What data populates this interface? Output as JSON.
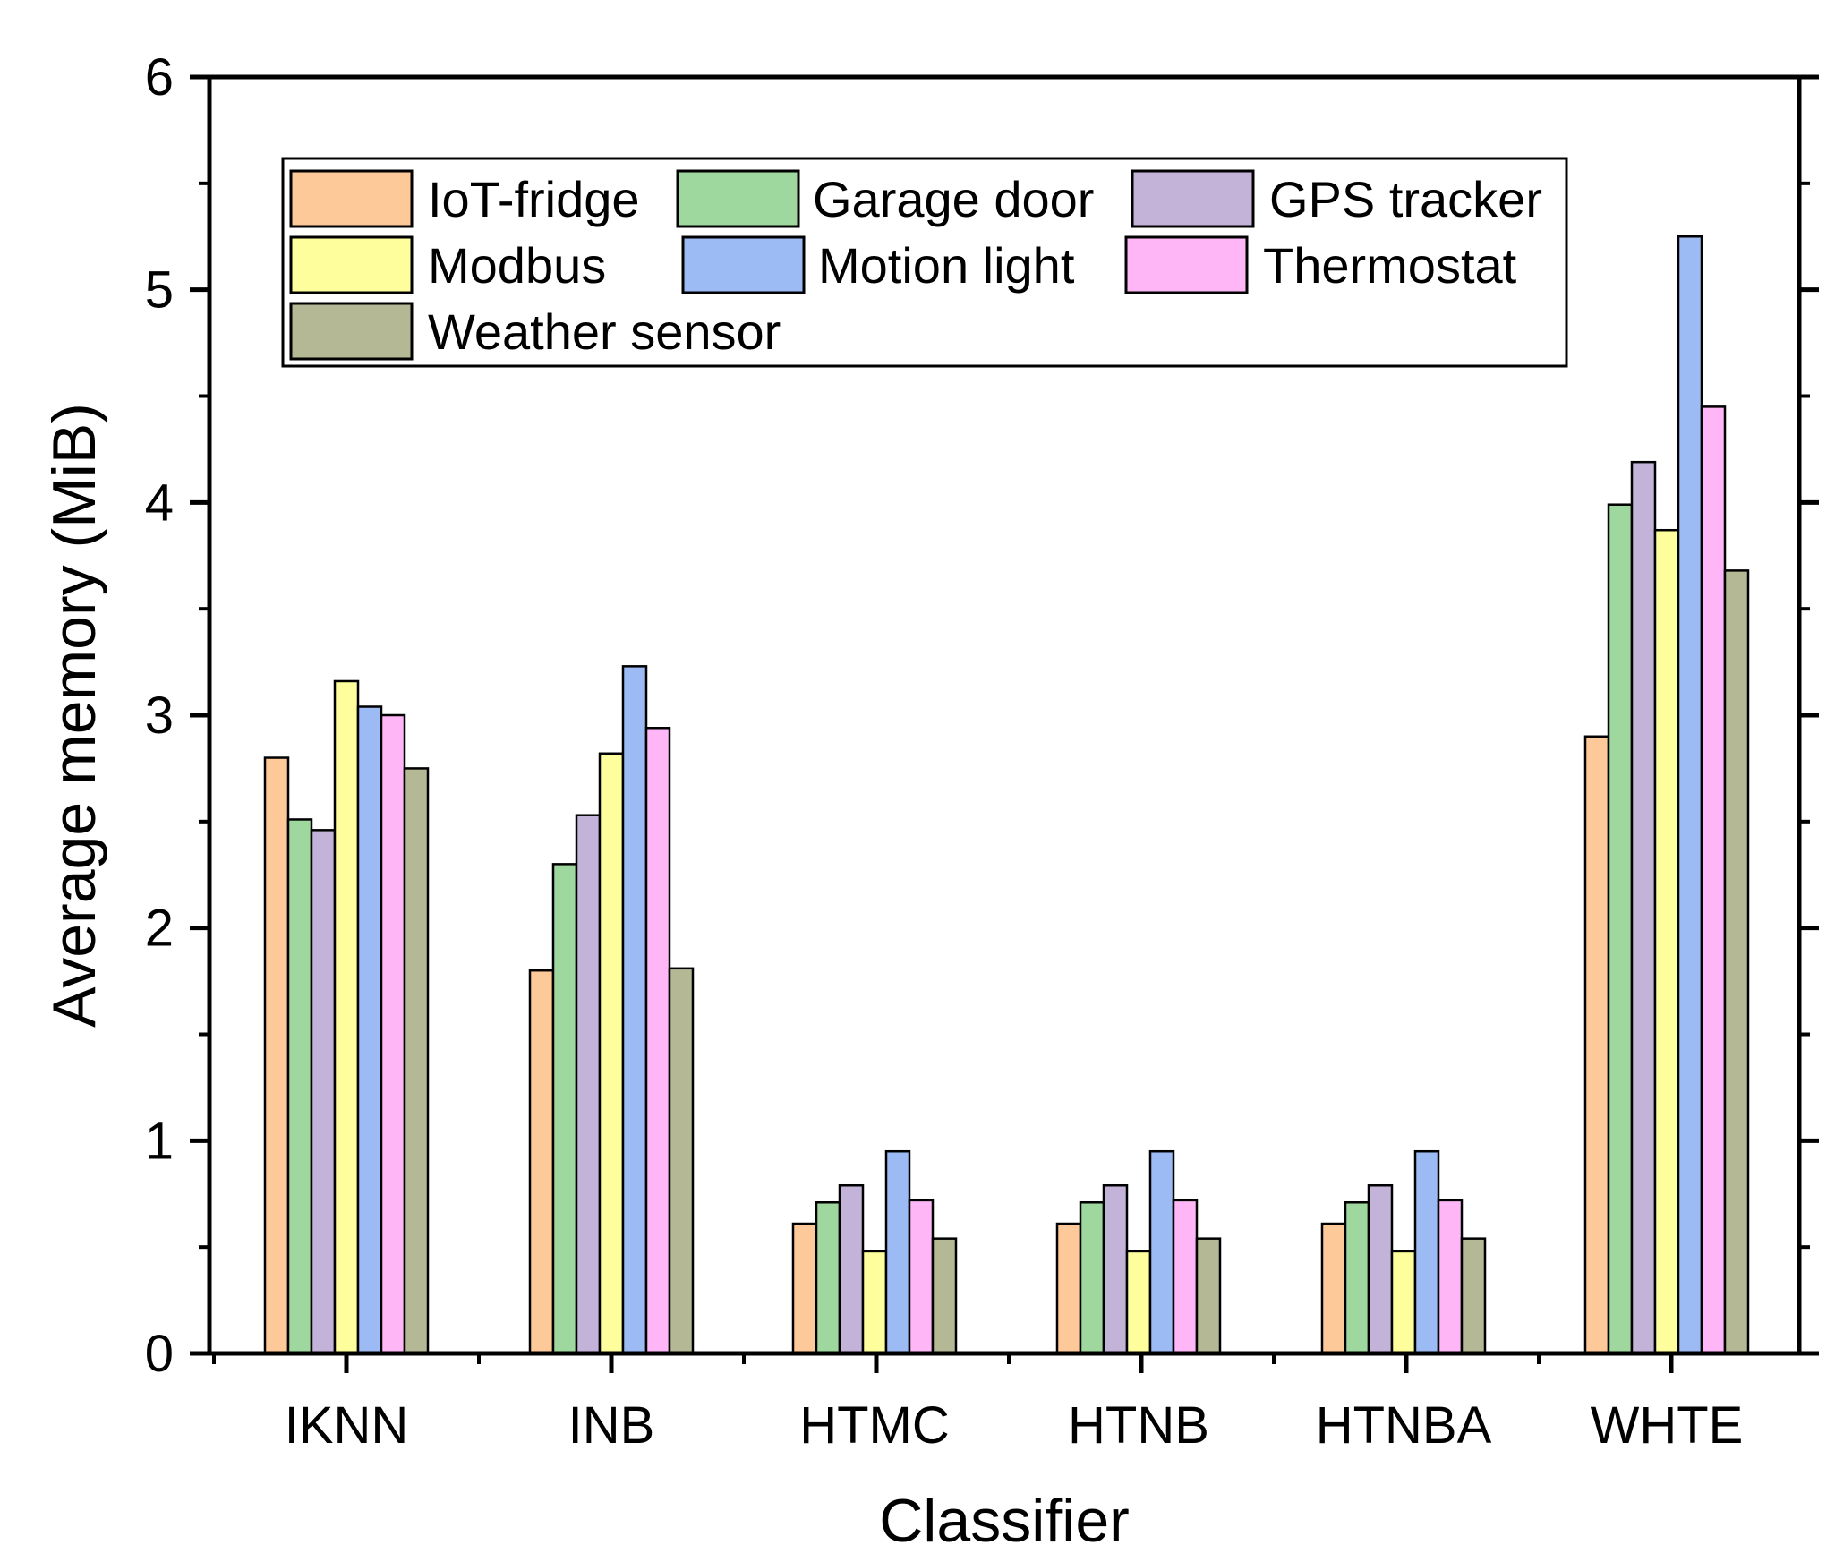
{
  "chart_data": {
    "type": "bar",
    "title": "",
    "xlabel": "Classifier",
    "ylabel": "Average memory (MiB)",
    "ylim": [
      0,
      6
    ],
    "yticks": [
      "0",
      "1",
      "2",
      "3",
      "4",
      "5",
      "6"
    ],
    "grid": false,
    "legend_position": "top",
    "categories": [
      "IKNN",
      "INB",
      "HTMC",
      "HTNB",
      "HTNBA",
      "WHTE"
    ],
    "series": [
      {
        "name": "IoT-fridge",
        "color": "#FDC998",
        "values": [
          2.8,
          1.8,
          0.61,
          0.61,
          0.61,
          2.9
        ]
      },
      {
        "name": "Garage door",
        "color": "#9ED89E",
        "values": [
          2.51,
          2.3,
          0.71,
          0.71,
          0.71,
          3.99
        ]
      },
      {
        "name": "GPS tracker",
        "color": "#C3B3D8",
        "values": [
          2.46,
          2.53,
          0.79,
          0.79,
          0.79,
          4.19
        ]
      },
      {
        "name": "Modbus",
        "color": "#FEFE9C",
        "values": [
          3.16,
          2.82,
          0.48,
          0.48,
          0.48,
          3.87
        ]
      },
      {
        "name": "Motion light",
        "color": "#9CBAF3",
        "values": [
          3.04,
          3.23,
          0.95,
          0.95,
          0.95,
          5.25
        ]
      },
      {
        "name": "Thermostat",
        "color": "#FEB6F6",
        "values": [
          3.0,
          2.94,
          0.72,
          0.72,
          0.72,
          4.45
        ]
      },
      {
        "name": "Weather sensor",
        "color": "#B5B895",
        "values": [
          2.75,
          1.81,
          0.54,
          0.54,
          0.54,
          3.68
        ]
      }
    ]
  }
}
